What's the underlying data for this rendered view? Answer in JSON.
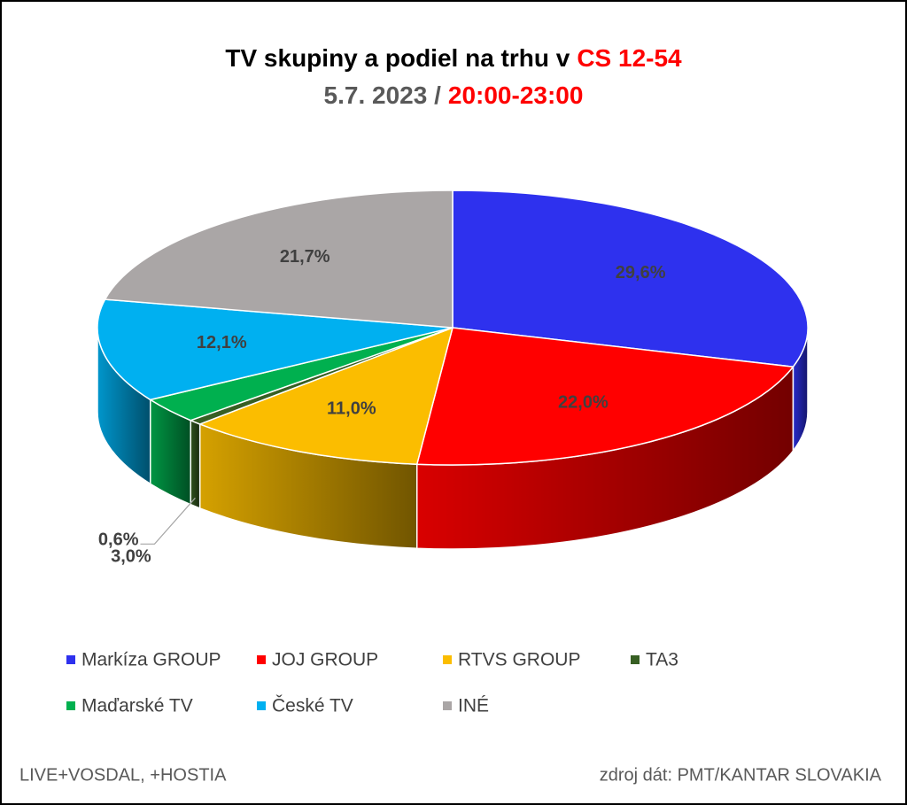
{
  "chart_data": {
    "type": "pie3d",
    "title_parts": [
      {
        "text": "TV skupiny a podiel na trhu v",
        "color": "#000000"
      },
      {
        "text": "CS 12-54",
        "color": "#ff0000"
      }
    ],
    "subtitle_parts": [
      {
        "text": "5.7. 2023 /",
        "color": "#595959"
      },
      {
        "text": "20:00-23:00",
        "color": "#ff0000"
      }
    ],
    "categories": [
      "Markíza GROUP",
      "JOJ GROUP",
      "RTVS GROUP",
      "TA3",
      "Maďarské  TV",
      "České  TV",
      "INÉ"
    ],
    "values": [
      29.6,
      22.0,
      11.0,
      0.6,
      3.0,
      12.1,
      21.7
    ],
    "value_labels": [
      "29,6%",
      "22,0%",
      "11,0%",
      "0,6%",
      "3,0%",
      "12,1%",
      "21,7%"
    ],
    "colors": [
      "#2e31ee",
      "#ff0000",
      "#fbbd00",
      "#375f23",
      "#00b04f",
      "#00b0f0",
      "#aaa6a6"
    ],
    "footnote_left": "LIVE+VOSDAL, +HOSTIA",
    "footnote_right": "zdroj dát: PMT/KANTAR SLOVAKIA"
  }
}
